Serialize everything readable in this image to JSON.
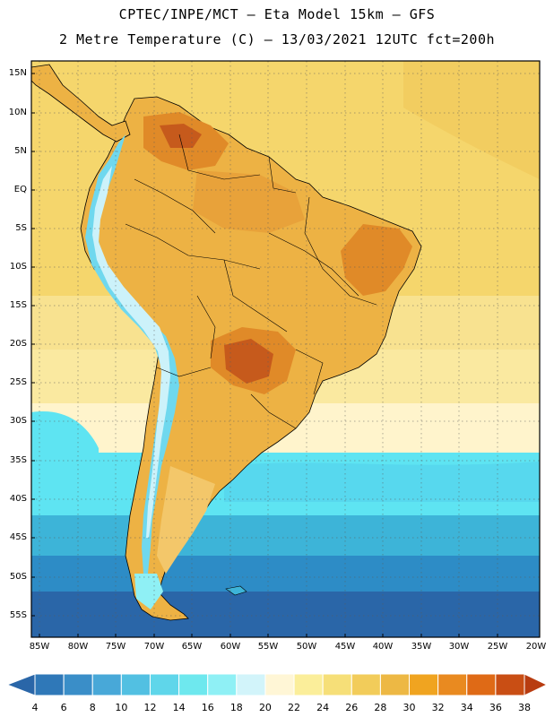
{
  "header": {
    "line1": "CPTEC/INPE/MCT –  Eta Model 15km – GFS",
    "line2": "2 Metre Temperature (C) – 13/03/2021 12UTC fct=200h"
  },
  "map": {
    "latitude_labels": [
      "15N",
      "10N",
      "5N",
      "EQ",
      "5S",
      "10S",
      "15S",
      "20S",
      "25S",
      "30S",
      "35S",
      "40S",
      "45S",
      "50S",
      "55S"
    ],
    "longitude_labels": [
      "85W",
      "80W",
      "75W",
      "70W",
      "65W",
      "60W",
      "55W",
      "50W",
      "45W",
      "40W",
      "35W",
      "30W",
      "25W",
      "20W"
    ],
    "ocean_colors": {
      "tropical": "#f5d66c",
      "subtropical": "#fae9a0",
      "transition": "#fff6d8",
      "cool": "#5ee4f2",
      "cold": "#3db4d8",
      "colder": "#2d8cc6",
      "coldest": "#2a66a8"
    },
    "land_colors": {
      "warm": "#edb244",
      "hot": "#e08a28",
      "hottest": "#c65a1c",
      "andes": "#6fd8ee",
      "andes_snow": "#ccf2fa"
    }
  },
  "legend": {
    "values": [
      "4",
      "6",
      "8",
      "10",
      "12",
      "14",
      "16",
      "18",
      "20",
      "22",
      "24",
      "26",
      "28",
      "30",
      "32",
      "34",
      "36",
      "38"
    ],
    "colors": [
      "#2a66a8",
      "#2f78b8",
      "#3a8ec8",
      "#48a8d8",
      "#52c0e2",
      "#5fd6ea",
      "#6ee8ee",
      "#8ff0f5",
      "#d2f4fa",
      "#fff6d6",
      "#fbee9a",
      "#f6df78",
      "#f2cc5a",
      "#edb844",
      "#f0a420",
      "#e98a20",
      "#df6a16",
      "#c94e14",
      "#b83c10"
    ]
  }
}
